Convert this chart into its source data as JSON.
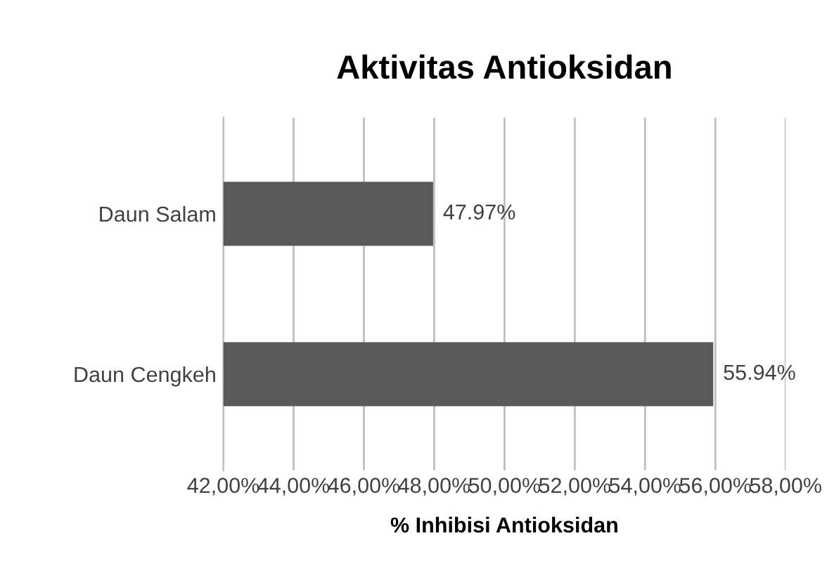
{
  "chart_data": {
    "type": "bar",
    "orientation": "horizontal",
    "title": "Aktivitas Antioksidan",
    "xlabel": "% Inhibisi Antioksidan",
    "categories": [
      "Daun Salam",
      "Daun Cengkeh"
    ],
    "values": [
      47.97,
      55.94
    ],
    "value_labels": [
      "47.97%",
      "55.94%"
    ],
    "color": "#595959",
    "xlim": [
      42,
      58
    ],
    "xticks": [
      {
        "value": 42,
        "label": "42,00%"
      },
      {
        "value": 44,
        "label": "44,00%"
      },
      {
        "value": 46,
        "label": "46,00%"
      },
      {
        "value": 48,
        "label": "48,00%"
      },
      {
        "value": 50,
        "label": "50,00%"
      },
      {
        "value": 52,
        "label": "52,00%"
      },
      {
        "value": 54,
        "label": "54,00%"
      },
      {
        "value": 56,
        "label": "56,00%"
      },
      {
        "value": 58,
        "label": "58,00%"
      }
    ],
    "grid": "x"
  }
}
